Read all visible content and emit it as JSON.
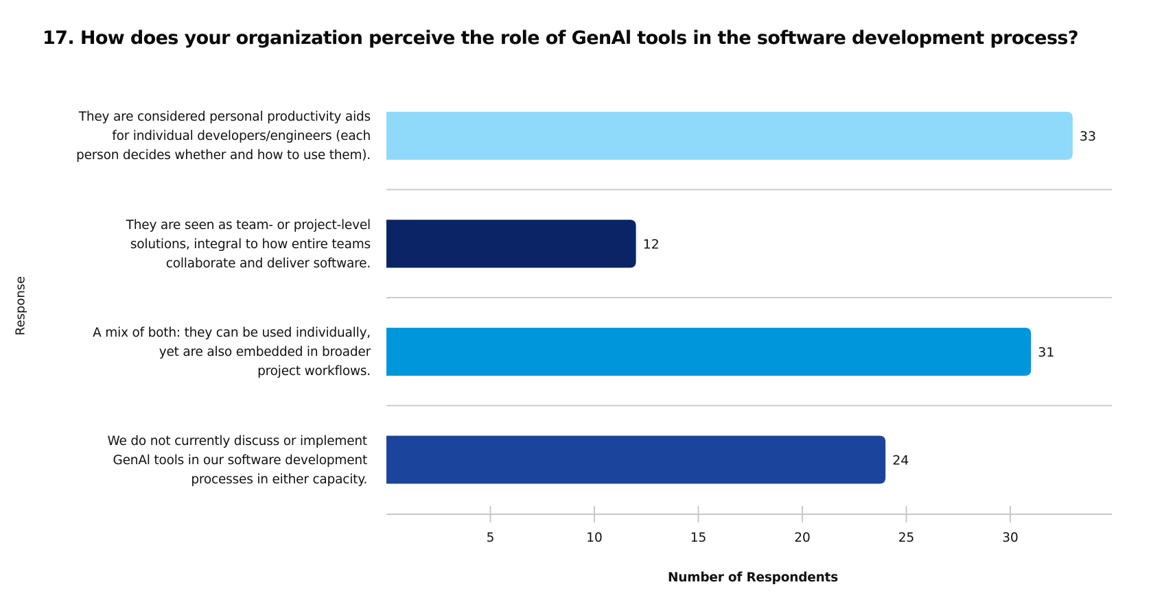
{
  "chart_data": {
    "type": "bar",
    "orientation": "horizontal",
    "title": "17. How does your organization perceive the role of GenAl tools in the software development process?",
    "xlabel": "Number of Respondents",
    "ylabel": "Response",
    "categories": [
      [
        "They are considered personal productivity aids",
        "for individual developers/engineers (each",
        "person decides whether and how to use them)."
      ],
      [
        "They are seen as team- or project-level",
        "solutions, integral to how entire teams",
        "collaborate and deliver software."
      ],
      [
        "A mix of both: they can be used individually,",
        "yet are also embedded in broader",
        "project workflows."
      ],
      [
        "We do not currently discuss or implement",
        "GenAl tools in our software development",
        "processes in either capacity."
      ]
    ],
    "values": [
      33,
      12,
      31,
      24
    ],
    "data_labels": [
      "33",
      "12",
      "31",
      "24"
    ],
    "colors": [
      "#8fd9fb",
      "#0a2466",
      "#0096db",
      "#1b449c"
    ],
    "xticks": [
      5,
      10,
      15,
      20,
      25,
      30
    ],
    "xtick_labels": [
      "5",
      "10",
      "15",
      "20",
      "25",
      "30"
    ],
    "xlim": [
      0,
      35
    ],
    "grid": "horizontal separators between categories",
    "legend": "none"
  }
}
